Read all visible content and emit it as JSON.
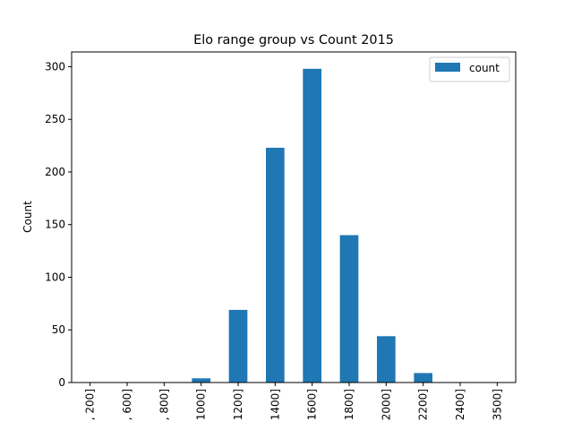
{
  "chart_data": {
    "type": "bar",
    "title": "Elo range group vs Count 2015",
    "xlabel": "",
    "ylabel": "Count",
    "categories": [
      ", 200]",
      ", 600]",
      ", 800]",
      "1000]",
      "1200]",
      "1400]",
      "1600]",
      "1800]",
      "2000]",
      "2200]",
      "2400]",
      "3500]"
    ],
    "series": [
      {
        "name": "count",
        "values": [
          0,
          0,
          0,
          4,
          69,
          223,
          298,
          140,
          44,
          9,
          0,
          0
        ],
        "color": "#1f77b4"
      }
    ],
    "ylim": [
      0,
      314
    ],
    "yticks": [
      0,
      50,
      100,
      150,
      200,
      250,
      300
    ],
    "grid": false,
    "legend_position": "top-right"
  }
}
